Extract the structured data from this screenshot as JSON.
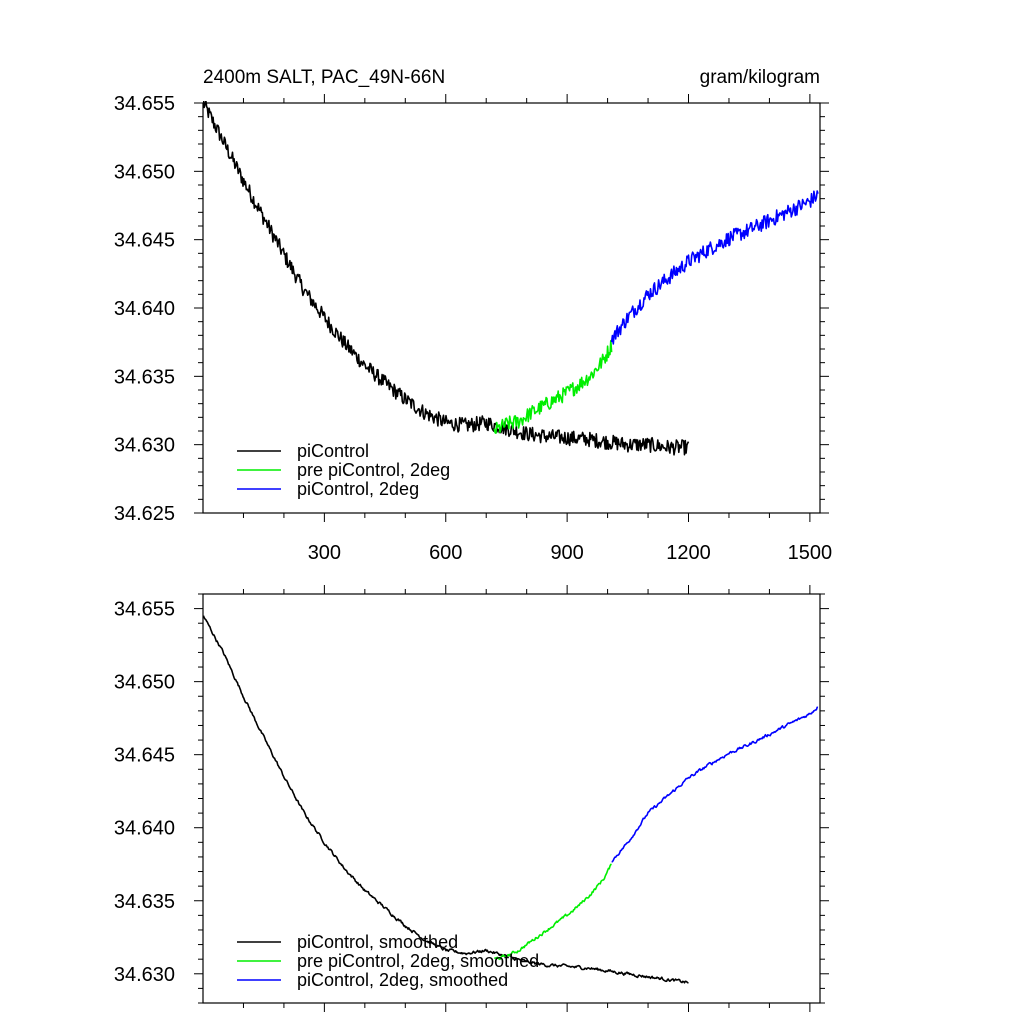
{
  "chart_data": [
    {
      "type": "line",
      "title": "2400m SALT, PAC_49N-66N",
      "units": "gram/kilogram",
      "xlim": [
        0,
        1525
      ],
      "ylim": [
        34.625,
        34.655
      ],
      "xticks": [
        300,
        600,
        900,
        1200,
        1500
      ],
      "xtick_labels": [
        "300",
        "600",
        "900",
        "1200",
        "1500"
      ],
      "yticks": [
        34.625,
        34.63,
        34.635,
        34.64,
        34.645,
        34.65,
        34.655
      ],
      "ytick_labels": [
        "34.625",
        "34.630",
        "34.635",
        "34.640",
        "34.645",
        "34.650",
        "34.655"
      ],
      "legend_position": "bottom-left",
      "series": [
        {
          "name": "piControl",
          "color": "#000000",
          "style": "raw",
          "x": [
            1,
            50,
            100,
            150,
            200,
            250,
            300,
            350,
            400,
            450,
            500,
            550,
            600,
            650,
            700,
            750,
            800,
            850,
            900,
            950,
            1000,
            1050,
            1100,
            1150,
            1200
          ],
          "values": [
            34.655,
            34.6522,
            34.6493,
            34.6466,
            34.6439,
            34.6413,
            34.6393,
            34.6374,
            34.6358,
            34.6345,
            34.6333,
            34.6323,
            34.6316,
            34.6314,
            34.6316,
            34.6312,
            34.6308,
            34.6306,
            34.6305,
            34.6304,
            34.6302,
            34.63,
            34.63,
            34.6298,
            34.6298
          ]
        },
        {
          "name": "pre piControl, 2deg",
          "color": "#00ee00",
          "style": "raw",
          "x": [
            720,
            750,
            780,
            810,
            840,
            870,
            900,
            930,
            960,
            990,
            1010
          ],
          "values": [
            34.631,
            34.6315,
            34.6317,
            34.6323,
            34.6328,
            34.6333,
            34.6338,
            34.6344,
            34.6351,
            34.6362,
            34.6373
          ]
        },
        {
          "name": "piControl, 2deg",
          "color": "#0000ff",
          "style": "raw",
          "x": [
            1010,
            1050,
            1100,
            1150,
            1200,
            1250,
            1300,
            1350,
            1400,
            1450,
            1500,
            1520
          ],
          "values": [
            34.6377,
            34.6393,
            34.641,
            34.6422,
            34.6434,
            34.6443,
            34.6451,
            34.6457,
            34.6464,
            34.6471,
            34.6478,
            34.6483
          ]
        }
      ]
    },
    {
      "type": "line",
      "title": "",
      "units": "",
      "xlim": [
        0,
        1525
      ],
      "ylim": [
        34.628,
        34.656
      ],
      "xticks": [
        300,
        600,
        900,
        1200,
        1500
      ],
      "yticks": [
        34.63,
        34.635,
        34.64,
        34.645,
        34.65,
        34.655
      ],
      "ytick_labels": [
        "34.630",
        "34.635",
        "34.640",
        "34.645",
        "34.650",
        "34.655"
      ],
      "legend_position": "bottom-left",
      "series": [
        {
          "name": "piControl, smoothed",
          "color": "#000000",
          "style": "smooth",
          "x": [
            1,
            50,
            100,
            150,
            200,
            250,
            300,
            350,
            400,
            450,
            500,
            550,
            600,
            650,
            700,
            750,
            800,
            850,
            900,
            950,
            1000,
            1050,
            1100,
            1150,
            1200
          ],
          "values": [
            34.6545,
            34.652,
            34.649,
            34.6462,
            34.6435,
            34.641,
            34.639,
            34.6372,
            34.6357,
            34.6345,
            34.6333,
            34.6323,
            34.6316,
            34.6314,
            34.6316,
            34.6312,
            34.6308,
            34.6306,
            34.6305,
            34.6304,
            34.6302,
            34.63,
            34.6298,
            34.6296,
            34.6294
          ]
        },
        {
          "name": "pre piControl, 2deg, smoothed",
          "color": "#00ee00",
          "style": "smooth",
          "x": [
            720,
            750,
            780,
            810,
            840,
            870,
            900,
            930,
            960,
            990,
            1010
          ],
          "values": [
            34.631,
            34.6312,
            34.6316,
            34.6322,
            34.6328,
            34.6334,
            34.634,
            34.6347,
            34.6355,
            34.6365,
            34.6375
          ]
        },
        {
          "name": "piControl, 2deg, smoothed",
          "color": "#0000ff",
          "style": "smooth",
          "x": [
            1010,
            1050,
            1100,
            1150,
            1200,
            1250,
            1300,
            1350,
            1400,
            1450,
            1500,
            1520
          ],
          "values": [
            34.6377,
            34.639,
            34.641,
            34.6422,
            34.6434,
            34.6443,
            34.6451,
            34.6457,
            34.6464,
            34.6471,
            34.6478,
            34.6483
          ]
        }
      ]
    }
  ]
}
